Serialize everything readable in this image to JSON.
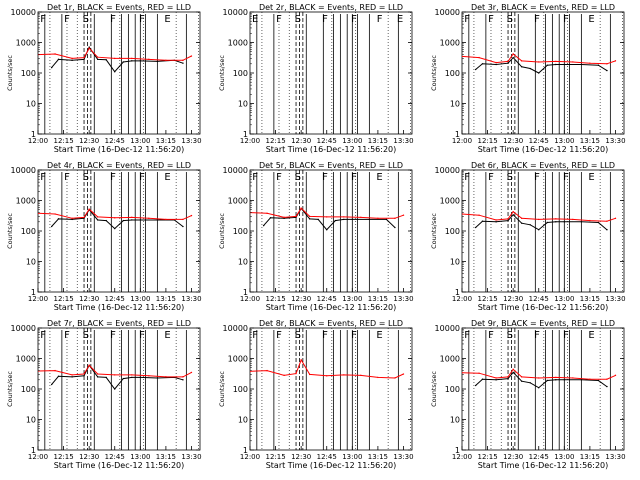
{
  "colors": {
    "background": "#ffffff",
    "axes": "#000000",
    "events": "#000000",
    "lld": "#ff0000"
  },
  "shared": {
    "xlabel": "Start Time (16-Dec-12 11:56:20)",
    "ylabel": "Counts/sec",
    "x_ticks": [
      "12:00",
      "12:15",
      "12:30",
      "12:45",
      "13:00",
      "13:15",
      "13:30"
    ],
    "y_ticks": [
      "1",
      "10",
      "100",
      "1000",
      "10000"
    ]
  },
  "chart_data": [
    {
      "type": "line",
      "title": "Det 1r, BLACK = Events, RED = LLD",
      "xlabel": "Start Time (16-Dec-12 11:56:20)",
      "ylabel": "Counts/sec",
      "x_ticks": [
        "12:00",
        "12:15",
        "12:30",
        "12:45",
        "13:00",
        "13:15",
        "13:30"
      ],
      "y_ticks": [
        "1",
        "10",
        "100",
        "1000",
        "10000"
      ],
      "ylim": [
        1,
        10000
      ],
      "y_scale": "log",
      "flags": [
        "F",
        "F",
        "S",
        "F",
        "F",
        "E"
      ],
      "series": [
        {
          "color": "#000000",
          "x": [
            "12:08",
            "12:12",
            "12:20",
            "12:27",
            "12:30",
            "12:35",
            "12:40",
            "12:45",
            "12:50",
            "12:55",
            "13:00",
            "13:10",
            "13:20",
            "13:25"
          ],
          "y": [
            150,
            280,
            260,
            280,
            700,
            280,
            270,
            110,
            230,
            250,
            250,
            240,
            260,
            210
          ]
        },
        {
          "color": "#ff0000",
          "x": [
            "12:00",
            "12:10",
            "12:20",
            "12:27",
            "12:30",
            "12:35",
            "12:45",
            "12:55",
            "13:05",
            "13:15",
            "13:25",
            "13:30"
          ],
          "y": [
            400,
            420,
            300,
            320,
            650,
            330,
            300,
            300,
            280,
            260,
            260,
            360
          ]
        }
      ]
    },
    {
      "type": "line",
      "title": "Det 2r, BLACK = Events, RED = LLD",
      "xlabel": "Start Time (16-Dec-12 11:56:20)",
      "ylabel": "Counts/sec",
      "x_ticks": [
        "12:00",
        "12:15",
        "12:30",
        "12:45",
        "13:00",
        "13:15",
        "13:30"
      ],
      "y_ticks": [
        "1",
        "10",
        "100",
        "1000",
        "10000"
      ],
      "ylim": [
        1,
        10000
      ],
      "y_scale": "log",
      "flags": [
        "E",
        "F",
        "S",
        "F",
        "F",
        "F",
        "E"
      ],
      "series": []
    },
    {
      "type": "line",
      "title": "Det 3r, BLACK = Events, RED = LLD",
      "xlabel": "Start Time (16-Dec-12 11:56:20)",
      "ylabel": "Counts/sec",
      "x_ticks": [
        "12:00",
        "12:15",
        "12:30",
        "12:45",
        "13:00",
        "13:15",
        "13:30"
      ],
      "y_ticks": [
        "1",
        "10",
        "100",
        "1000",
        "10000"
      ],
      "ylim": [
        1,
        10000
      ],
      "y_scale": "log",
      "flags": [
        "F",
        "F",
        "S",
        "F",
        "F",
        "E"
      ],
      "series": [
        {
          "color": "#000000",
          "x": [
            "12:08",
            "12:12",
            "12:20",
            "12:27",
            "12:30",
            "12:35",
            "12:40",
            "12:45",
            "12:50",
            "12:55",
            "13:00",
            "13:10",
            "13:20",
            "13:25"
          ],
          "y": [
            130,
            200,
            190,
            210,
            320,
            160,
            140,
            100,
            180,
            190,
            190,
            190,
            180,
            120
          ]
        },
        {
          "color": "#ff0000",
          "x": [
            "12:00",
            "12:10",
            "12:20",
            "12:27",
            "12:30",
            "12:35",
            "12:45",
            "12:55",
            "13:05",
            "13:15",
            "13:25",
            "13:30"
          ],
          "y": [
            350,
            320,
            220,
            240,
            420,
            250,
            230,
            240,
            230,
            210,
            200,
            250
          ]
        }
      ]
    },
    {
      "type": "line",
      "title": "Det 4r, BLACK = Events, RED = LLD",
      "xlabel": "Start Time (16-Dec-12 11:56:20)",
      "ylabel": "Counts/sec",
      "x_ticks": [
        "12:00",
        "12:15",
        "12:30",
        "12:45",
        "13:00",
        "13:15",
        "13:30"
      ],
      "y_ticks": [
        "1",
        "10",
        "100",
        "1000",
        "10000"
      ],
      "ylim": [
        1,
        10000
      ],
      "y_scale": "log",
      "flags": [
        "F",
        "F",
        "S",
        "F",
        "F",
        "E"
      ],
      "series": [
        {
          "color": "#000000",
          "x": [
            "12:08",
            "12:12",
            "12:20",
            "12:27",
            "12:30",
            "12:35",
            "12:40",
            "12:45",
            "12:50",
            "12:55",
            "13:00",
            "13:10",
            "13:20",
            "13:25"
          ],
          "y": [
            140,
            250,
            240,
            260,
            500,
            230,
            220,
            120,
            220,
            230,
            230,
            230,
            230,
            140
          ]
        },
        {
          "color": "#ff0000",
          "x": [
            "12:00",
            "12:10",
            "12:20",
            "12:27",
            "12:30",
            "12:35",
            "12:45",
            "12:55",
            "13:05",
            "13:15",
            "13:25",
            "13:30"
          ],
          "y": [
            380,
            360,
            260,
            280,
            520,
            290,
            270,
            280,
            260,
            240,
            240,
            320
          ]
        }
      ]
    },
    {
      "type": "line",
      "title": "Det 5r, BLACK = Events, RED = LLD",
      "xlabel": "Start Time (16-Dec-12 11:56:20)",
      "ylabel": "Counts/sec",
      "x_ticks": [
        "12:00",
        "12:15",
        "12:30",
        "12:45",
        "13:00",
        "13:15",
        "13:30"
      ],
      "y_ticks": [
        "1",
        "10",
        "100",
        "1000",
        "10000"
      ],
      "ylim": [
        1,
        10000
      ],
      "y_scale": "log",
      "flags": [
        "F",
        "F",
        "S",
        "F",
        "F",
        "E"
      ],
      "series": [
        {
          "color": "#000000",
          "x": [
            "12:08",
            "12:12",
            "12:20",
            "12:27",
            "12:30",
            "12:35",
            "12:40",
            "12:45",
            "12:50",
            "12:55",
            "13:00",
            "13:10",
            "13:20",
            "13:25"
          ],
          "y": [
            150,
            270,
            260,
            280,
            550,
            250,
            240,
            110,
            220,
            240,
            240,
            240,
            240,
            130
          ]
        },
        {
          "color": "#ff0000",
          "x": [
            "12:00",
            "12:10",
            "12:20",
            "12:27",
            "12:30",
            "12:35",
            "12:45",
            "12:55",
            "13:05",
            "13:15",
            "13:25",
            "13:30"
          ],
          "y": [
            400,
            380,
            280,
            300,
            560,
            300,
            290,
            290,
            280,
            260,
            260,
            330
          ]
        }
      ]
    },
    {
      "type": "line",
      "title": "Det 6r, BLACK = Events, RED = LLD",
      "xlabel": "Start Time (16-Dec-12 11:56:20)",
      "ylabel": "Counts/sec",
      "x_ticks": [
        "12:00",
        "12:15",
        "12:30",
        "12:45",
        "13:00",
        "13:15",
        "13:30"
      ],
      "y_ticks": [
        "1",
        "10",
        "100",
        "1000",
        "10000"
      ],
      "ylim": [
        1,
        10000
      ],
      "y_scale": "log",
      "flags": [
        "F",
        "F",
        "S",
        "F",
        "F",
        "E"
      ],
      "series": [
        {
          "color": "#000000",
          "x": [
            "12:08",
            "12:12",
            "12:20",
            "12:27",
            "12:30",
            "12:35",
            "12:40",
            "12:45",
            "12:50",
            "12:55",
            "13:00",
            "13:10",
            "13:20",
            "13:25"
          ],
          "y": [
            130,
            210,
            200,
            220,
            340,
            180,
            160,
            110,
            190,
            200,
            200,
            200,
            190,
            110
          ]
        },
        {
          "color": "#ff0000",
          "x": [
            "12:00",
            "12:10",
            "12:20",
            "12:27",
            "12:30",
            "12:35",
            "12:45",
            "12:55",
            "13:05",
            "13:15",
            "13:25",
            "13:30"
          ],
          "y": [
            360,
            330,
            230,
            250,
            430,
            260,
            240,
            250,
            240,
            220,
            210,
            260
          ]
        }
      ]
    },
    {
      "type": "line",
      "title": "Det 7r, BLACK = Events, RED = LLD",
      "xlabel": "Start Time (16-Dec-12 11:56:20)",
      "ylabel": "Counts/sec",
      "x_ticks": [
        "12:00",
        "12:15",
        "12:30",
        "12:45",
        "13:00",
        "13:15",
        "13:30"
      ],
      "y_ticks": [
        "1",
        "10",
        "100",
        "1000",
        "10000"
      ],
      "ylim": [
        1,
        10000
      ],
      "y_scale": "log",
      "flags": [
        "F",
        "F",
        "S",
        "F",
        "F",
        "E"
      ],
      "series": [
        {
          "color": "#000000",
          "x": [
            "12:08",
            "12:12",
            "12:20",
            "12:27",
            "12:30",
            "12:35",
            "12:40",
            "12:45",
            "12:50",
            "12:55",
            "13:00",
            "13:10",
            "13:20",
            "13:25"
          ],
          "y": [
            140,
            260,
            250,
            270,
            600,
            250,
            240,
            100,
            220,
            240,
            240,
            230,
            240,
            200
          ]
        },
        {
          "color": "#ff0000",
          "x": [
            "12:00",
            "12:10",
            "12:20",
            "12:27",
            "12:30",
            "12:35",
            "12:45",
            "12:55",
            "13:05",
            "13:15",
            "13:25",
            "13:30"
          ],
          "y": [
            390,
            400,
            290,
            310,
            600,
            310,
            290,
            290,
            270,
            250,
            250,
            350
          ]
        }
      ]
    },
    {
      "type": "line",
      "title": "Det 8r, BLACK = Events, RED = LLD",
      "xlabel": "Start Time (16-Dec-12 11:56:20)",
      "ylabel": "Counts/sec",
      "x_ticks": [
        "12:00",
        "12:15",
        "12:30",
        "12:45",
        "13:00",
        "13:15",
        "13:30"
      ],
      "y_ticks": [
        "1",
        "10",
        "100",
        "1000",
        "10000"
      ],
      "ylim": [
        1,
        10000
      ],
      "y_scale": "log",
      "flags": [
        "F",
        "F",
        "S",
        "F",
        "F",
        "E"
      ],
      "series": [
        {
          "color": "#ff0000",
          "x": [
            "12:00",
            "12:10",
            "12:20",
            "12:27",
            "12:30",
            "12:35",
            "12:45",
            "12:55",
            "13:05",
            "13:15",
            "13:25",
            "13:30"
          ],
          "y": [
            380,
            400,
            280,
            320,
            900,
            300,
            270,
            290,
            280,
            240,
            230,
            310
          ]
        }
      ]
    },
    {
      "type": "line",
      "title": "Det 9r, BLACK = Events, RED = LLD",
      "xlabel": "Start Time (16-Dec-12 11:56:20)",
      "ylabel": "Counts/sec",
      "x_ticks": [
        "12:00",
        "12:15",
        "12:30",
        "12:45",
        "13:00",
        "13:15",
        "13:30"
      ],
      "y_ticks": [
        "1",
        "10",
        "100",
        "1000",
        "10000"
      ],
      "ylim": [
        1,
        10000
      ],
      "y_scale": "log",
      "flags": [
        "F",
        "F",
        "S",
        "F",
        "F",
        "E"
      ],
      "series": [
        {
          "color": "#000000",
          "x": [
            "12:08",
            "12:12",
            "12:20",
            "12:27",
            "12:30",
            "12:35",
            "12:40",
            "12:45",
            "12:50",
            "12:55",
            "13:00",
            "13:10",
            "13:20",
            "13:25"
          ],
          "y": [
            130,
            210,
            200,
            220,
            350,
            180,
            160,
            110,
            190,
            200,
            200,
            200,
            190,
            120
          ]
        },
        {
          "color": "#ff0000",
          "x": [
            "12:00",
            "12:10",
            "12:20",
            "12:27",
            "12:30",
            "12:35",
            "12:45",
            "12:55",
            "13:05",
            "13:15",
            "13:25",
            "13:30"
          ],
          "y": [
            340,
            330,
            230,
            250,
            440,
            250,
            230,
            240,
            230,
            210,
            210,
            280
          ]
        }
      ]
    }
  ]
}
